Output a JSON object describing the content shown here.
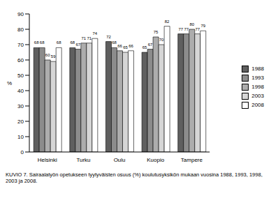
{
  "chart_data": {
    "type": "bar",
    "title": "KUVIO 7. Sairaalatyön opetukseen tyytyväisten osuus (%) koulutusyksikön mukaan vuosina 1988, 1993, 1998, 2003 ja 2008.",
    "y_label": "%",
    "categories": [
      "Helsinki",
      "Turku",
      "Oulu",
      "Kuopio",
      "Tampere"
    ],
    "series": [
      {
        "name": "1988",
        "color": "#5f5f5f",
        "values": [
          68,
          68,
          72,
          65,
          77
        ]
      },
      {
        "name": "1993",
        "color": "#8c8c8c",
        "values": [
          68,
          67,
          68,
          67,
          77
        ]
      },
      {
        "name": "1998",
        "color": "#adadad",
        "values": [
          60,
          71,
          66,
          75,
          80
        ]
      },
      {
        "name": "2003",
        "color": "#d6d6d6",
        "values": [
          59,
          71,
          65,
          70,
          77
        ]
      },
      {
        "name": "2008",
        "color": "#ffffff",
        "values": [
          68,
          74,
          66,
          82,
          79
        ]
      }
    ],
    "ylim": [
      0,
      90
    ],
    "yticks": [
      0,
      10,
      20,
      30,
      40,
      50,
      60,
      70,
      80,
      90
    ],
    "grid": false,
    "legend": "right",
    "data_labels": true
  }
}
